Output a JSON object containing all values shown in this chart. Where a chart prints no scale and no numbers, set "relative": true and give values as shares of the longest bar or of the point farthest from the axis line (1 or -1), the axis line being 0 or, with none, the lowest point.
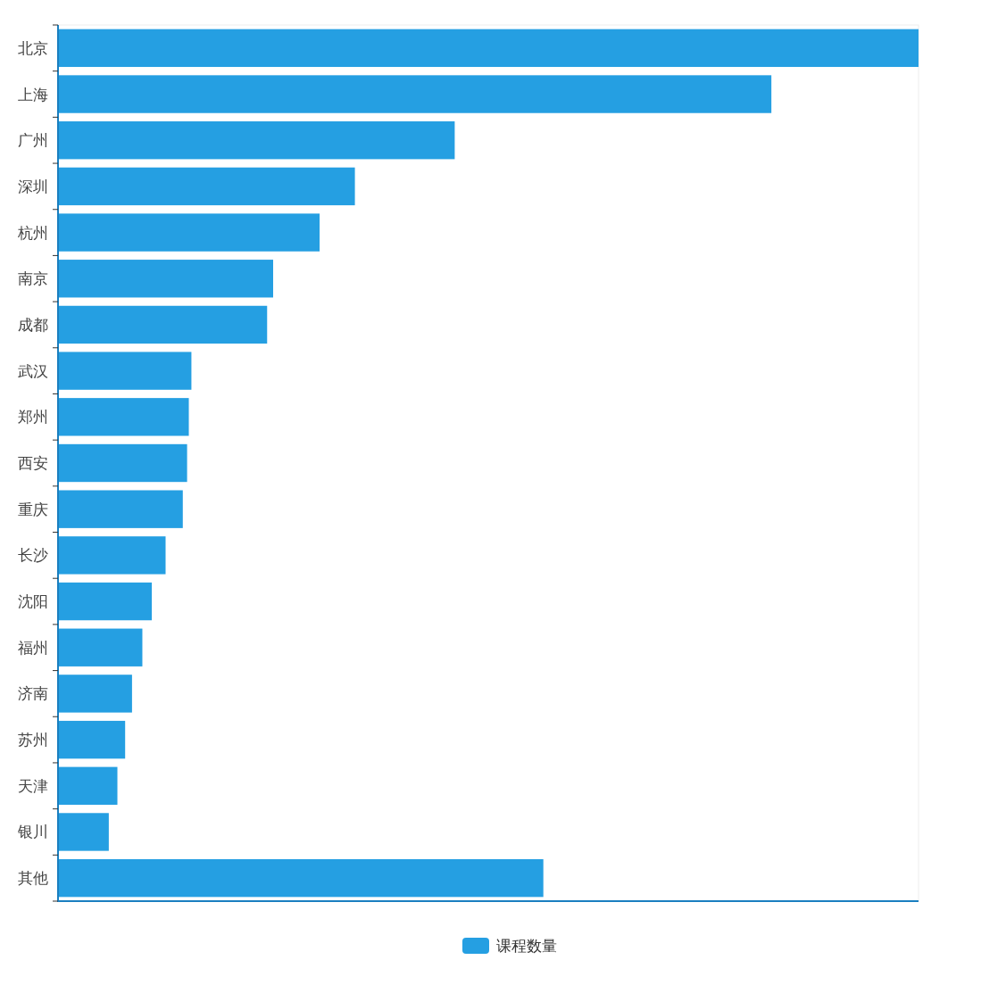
{
  "chart_data": {
    "type": "bar",
    "orientation": "horizontal",
    "relative": true,
    "categories": [
      "北京",
      "上海",
      "广州",
      "深圳",
      "杭州",
      "南京",
      "成都",
      "武汉",
      "郑州",
      "西安",
      "重庆",
      "长沙",
      "沈阳",
      "福州",
      "济南",
      "苏州",
      "天津",
      "银川",
      "其他"
    ],
    "series": [
      {
        "name": "课程数量",
        "color": "#259fe2",
        "values": [
          1,
          0.829,
          0.461,
          0.345,
          0.304,
          0.25,
          0.243,
          0.155,
          0.152,
          0.15,
          0.145,
          0.125,
          0.109,
          0.098,
          0.086,
          0.078,
          0.069,
          0.059,
          0.564
        ]
      }
    ],
    "legend": "bottom"
  }
}
